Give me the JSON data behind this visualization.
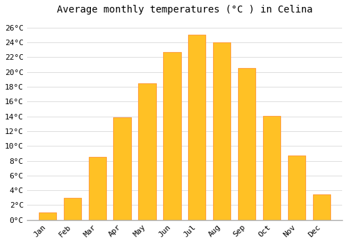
{
  "title": "Average monthly temperatures (°C ) in Celina",
  "months": [
    "Jan",
    "Feb",
    "Mar",
    "Apr",
    "May",
    "Jun",
    "Jul",
    "Aug",
    "Sep",
    "Oct",
    "Nov",
    "Dec"
  ],
  "values": [
    1,
    3,
    8.5,
    13.9,
    18.5,
    22.7,
    25.0,
    24.0,
    20.5,
    14.1,
    8.7,
    3.5
  ],
  "bar_color": "#FFC125",
  "bar_edge_color": "#FFA040",
  "background_color": "#FFFFFF",
  "grid_color": "#DDDDDD",
  "ylim": [
    0,
    27
  ],
  "yticks": [
    0,
    2,
    4,
    6,
    8,
    10,
    12,
    14,
    16,
    18,
    20,
    22,
    24,
    26
  ],
  "ylabel_suffix": "°C",
  "title_fontsize": 10,
  "tick_fontsize": 8,
  "font_family": "monospace"
}
